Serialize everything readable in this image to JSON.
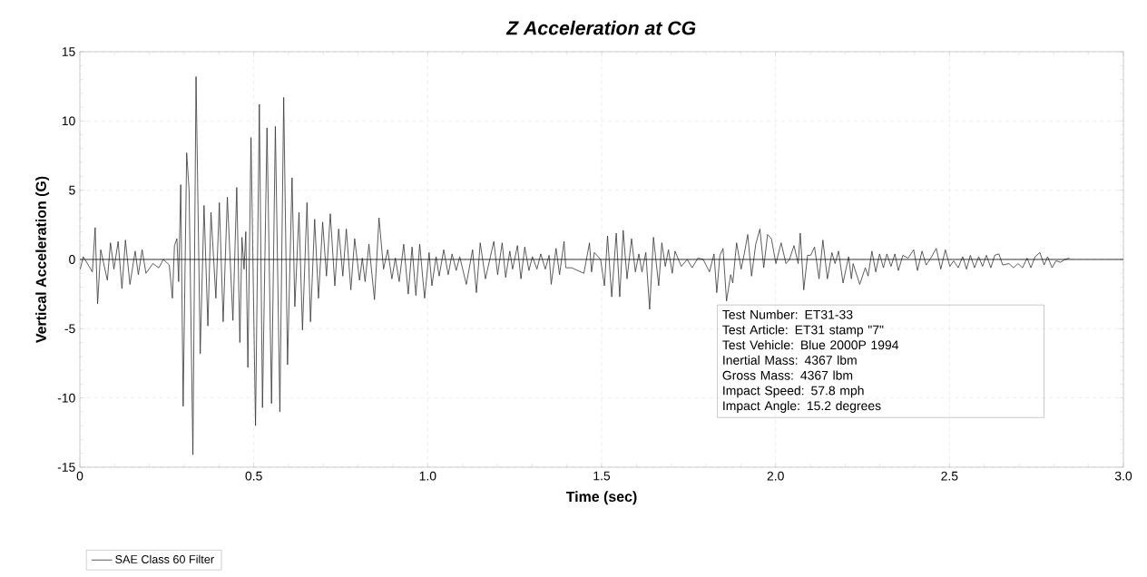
{
  "chart_data": {
    "type": "line",
    "title": "Z Acceleration at CG",
    "xlabel": "Time (sec)",
    "ylabel": "Vertical Acceleration (G)",
    "x": [
      0.001,
      0.01,
      0.036,
      0.044,
      0.051,
      0.06,
      0.079,
      0.088,
      0.098,
      0.11,
      0.121,
      0.131,
      0.144,
      0.159,
      0.168,
      0.179,
      0.19,
      0.21,
      0.227,
      0.24,
      0.257,
      0.266,
      0.272,
      0.279,
      0.284,
      0.29,
      0.297,
      0.307,
      0.314,
      0.325,
      0.334,
      0.346,
      0.357,
      0.368,
      0.377,
      0.391,
      0.401,
      0.412,
      0.424,
      0.44,
      0.451,
      0.46,
      0.466,
      0.472,
      0.477,
      0.483,
      0.492,
      0.505,
      0.516,
      0.525,
      0.538,
      0.551,
      0.562,
      0.575,
      0.586,
      0.597,
      0.61,
      0.618,
      0.63,
      0.64,
      0.653,
      0.663,
      0.675,
      0.686,
      0.698,
      0.709,
      0.72,
      0.733,
      0.744,
      0.756,
      0.766,
      0.779,
      0.79,
      0.804,
      0.812,
      0.82,
      0.831,
      0.847,
      0.86,
      0.873,
      0.885,
      0.897,
      0.907,
      0.918,
      0.931,
      0.944,
      0.955,
      0.966,
      0.977,
      0.991,
      1.004,
      1.012,
      1.024,
      1.033,
      1.046,
      1.059,
      1.07,
      1.082,
      1.092,
      1.111,
      1.129,
      1.14,
      1.151,
      1.166,
      1.19,
      1.201,
      1.214,
      1.224,
      1.236,
      1.244,
      1.258,
      1.268,
      1.279,
      1.291,
      1.301,
      1.314,
      1.325,
      1.338,
      1.349,
      1.355,
      1.369,
      1.379,
      1.392,
      1.397,
      1.414,
      1.44,
      1.449,
      1.465,
      1.471,
      1.479,
      1.497,
      1.508,
      1.517,
      1.529,
      1.542,
      1.552,
      1.562,
      1.573,
      1.586,
      1.597,
      1.607,
      1.616,
      1.627,
      1.638,
      1.649,
      1.664,
      1.673,
      1.683,
      1.692,
      1.703,
      1.711,
      1.729,
      1.746,
      1.76,
      1.777,
      1.792,
      1.81,
      1.823,
      1.831,
      1.84,
      1.849,
      1.859,
      1.871,
      1.877,
      1.888,
      1.901,
      1.91,
      1.92,
      1.931,
      1.943,
      1.955,
      1.966,
      1.977,
      1.988,
      2.001,
      2.016,
      2.03,
      2.04,
      2.053,
      2.065,
      2.071,
      2.081,
      2.092,
      2.101,
      2.112,
      2.125,
      2.136,
      2.149,
      2.162,
      2.171,
      2.181,
      2.194,
      2.21,
      2.218,
      2.223,
      2.242,
      2.258,
      2.266,
      2.277,
      2.288,
      2.299,
      2.31,
      2.32,
      2.332,
      2.343,
      2.353,
      2.366,
      2.381,
      2.397,
      2.408,
      2.421,
      2.433,
      2.444,
      2.462,
      2.475,
      2.488,
      2.501,
      2.512,
      2.525,
      2.538,
      2.549,
      2.56,
      2.572,
      2.584,
      2.595,
      2.606,
      2.619,
      2.63,
      2.642,
      2.653,
      2.671,
      2.684,
      2.697,
      2.71,
      2.723,
      2.734,
      2.746,
      2.76,
      2.772,
      2.782,
      2.795,
      2.806,
      2.819,
      2.832,
      2.845
    ],
    "series": [
      {
        "name": "SAE Class 60 Filter",
        "color": "#333333",
        "values": [
          -0.7,
          0.2,
          -0.9,
          2.3,
          -3.2,
          0.7,
          -1.5,
          1.2,
          -0.7,
          1.3,
          -2.1,
          1.4,
          -1.8,
          0.6,
          -1.1,
          0.7,
          -1.0,
          -0.3,
          -0.6,
          0.0,
          -0.4,
          -2.8,
          1.0,
          1.5,
          -1.6,
          5.4,
          -10.6,
          7.7,
          5.0,
          -14.1,
          13.2,
          -6.8,
          3.9,
          -4.8,
          3.4,
          -2.8,
          4.1,
          -4.5,
          4.5,
          -4.4,
          5.2,
          -6.0,
          1.6,
          -0.7,
          2.0,
          -7.8,
          8.8,
          -12.0,
          11.2,
          -10.7,
          9.5,
          -10.4,
          9.6,
          -11.0,
          11.7,
          -7.6,
          5.9,
          -3.4,
          3.4,
          -5.1,
          4.1,
          -4.5,
          2.9,
          -2.8,
          2.7,
          -1.2,
          3.3,
          -1.9,
          2.2,
          -1.2,
          2.2,
          -2.2,
          1.5,
          -1.5,
          0.1,
          -1.6,
          1.1,
          -2.9,
          3.0,
          -0.7,
          0.7,
          -1.4,
          0.1,
          -1.6,
          1.1,
          -2.5,
          0.9,
          -2.6,
          1.1,
          -2.8,
          0.5,
          -1.9,
          0.2,
          -1.2,
          0.7,
          -1.1,
          0.4,
          -0.8,
          0.2,
          -1.8,
          0.7,
          -2.4,
          1.2,
          -1.4,
          1.3,
          -1.1,
          1.2,
          -1.3,
          0.6,
          -0.7,
          1.0,
          -1.4,
          0.9,
          -0.8,
          0.2,
          -0.7,
          0.4,
          -0.7,
          0.3,
          -1.8,
          0.8,
          -1.1,
          1.3,
          -0.6,
          -0.6,
          -0.9,
          -1.0,
          1.2,
          -0.9,
          0.5,
          0.0,
          -1.9,
          1.7,
          -2.7,
          1.9,
          -2.7,
          2.1,
          -1.4,
          1.5,
          -0.9,
          0.4,
          -0.9,
          0.5,
          -3.6,
          1.6,
          -1.9,
          1.2,
          -0.5,
          0.7,
          -1.0,
          0.6,
          -0.5,
          0.0,
          -0.6,
          0.1,
          0.0,
          -0.9,
          0.4,
          -2.4,
          0.3,
          0.8,
          -3.0,
          -1.1,
          -1.7,
          1.2,
          -0.7,
          0.4,
          1.8,
          -1.2,
          1.1,
          2.2,
          -0.6,
          1.8,
          1.5,
          -0.3,
          1.2,
          -0.3,
          0.0,
          1.0,
          -0.3,
          1.9,
          -2.2,
          0.3,
          0.3,
          0.9,
          -1.4,
          1.4,
          -1.4,
          0.5,
          -0.3,
          0.6,
          -1.7,
          0.2,
          -1.4,
          -0.3,
          -1.8,
          -0.6,
          -1.2,
          0.6,
          -0.9,
          0.4,
          -0.6,
          0.4,
          -0.5,
          0.4,
          -0.8,
          0.3,
          0.1,
          0.7,
          -0.8,
          0.6,
          -0.4,
          0.0,
          0.8,
          -0.7,
          0.7,
          -0.5,
          -0.1,
          -0.6,
          0.2,
          -0.7,
          0.3,
          -0.6,
          0.2,
          -0.5,
          0.3,
          -0.6,
          0.3,
          0.4,
          -0.4,
          -0.3,
          -0.6,
          -0.3,
          -0.6,
          0.1,
          -0.6,
          0.2,
          0.5,
          -0.4,
          0.2,
          -0.6,
          -0.1,
          -0.2,
          0.0,
          0.1
        ]
      }
    ],
    "xlim": [
      0,
      3.0
    ],
    "ylim": [
      -15,
      15
    ],
    "xticks": [
      0,
      0.5,
      {
        "value": 1,
        "label": "1.0"
      },
      1.5,
      {
        "value": 2,
        "label": "2.0"
      },
      2.5,
      {
        "value": 3,
        "label": "3.0"
      }
    ],
    "yticks": [
      -15,
      -10,
      -5,
      0,
      5,
      10,
      15
    ],
    "ref_lines": [
      {
        "axis": "y",
        "value": 0,
        "color": "#000000"
      }
    ],
    "grid": true,
    "legend": "bottom left",
    "marker": "none",
    "line_style": "solid",
    "annotations": [
      "Test Number: ET31-33",
      "Test Article: ET31 stamp \"7\"",
      "Test Vehicle: Blue 2000P 1994",
      "Inertial Mass: 4367 lbm",
      "Gross Mass: 4367 lbm",
      "Impact Speed: 57.8 mph",
      "Impact Angle: 15.2 degrees"
    ]
  }
}
